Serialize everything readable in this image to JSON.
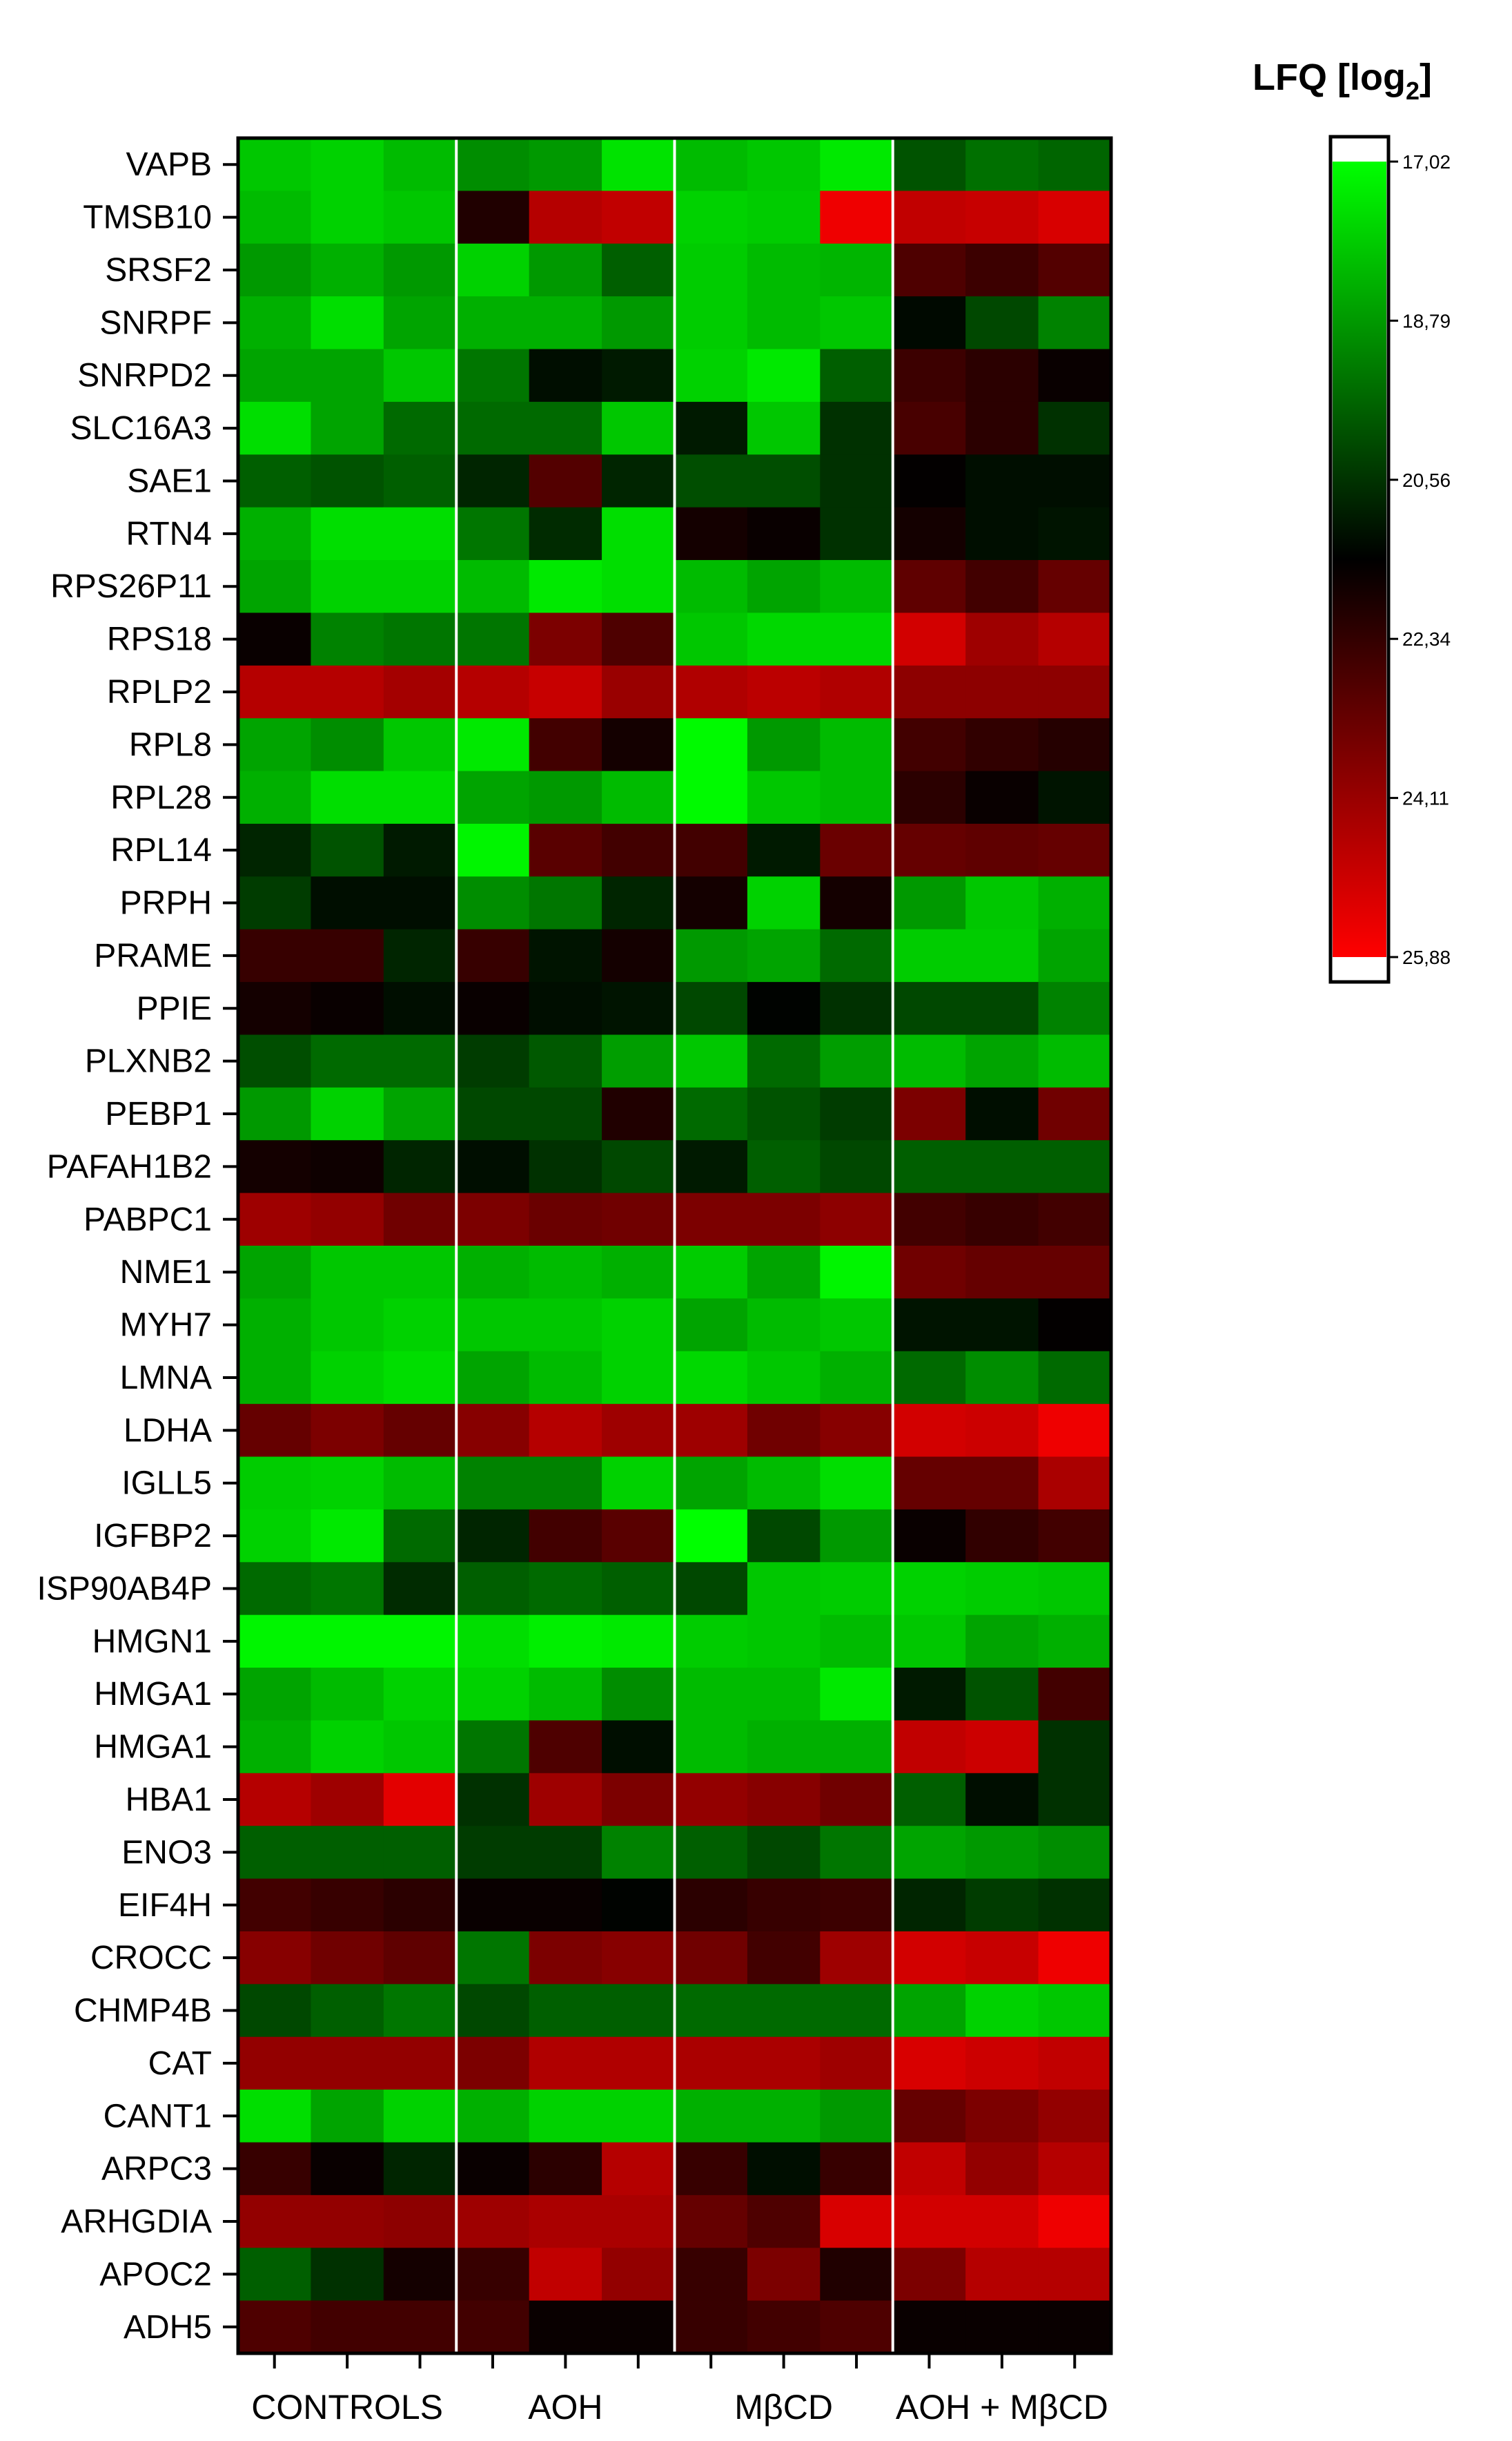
{
  "chart_data": {
    "type": "heatmap",
    "title": "",
    "xlabel": "",
    "ylabel": "",
    "groups": [
      "CONTROLS",
      "AOH",
      "MβCD",
      "AOH + MβCD"
    ],
    "replicates_per_group": 3,
    "rows": [
      "VAPB",
      "TMSB10",
      "SRSF2",
      "SNRPF",
      "SNRPD2",
      "SLC16A3",
      "SAE1",
      "RTN4",
      "RPS26P11",
      "RPS18",
      "RPLP2",
      "RPL8",
      "RPL28",
      "RPL14",
      "PRPH",
      "PRAME",
      "PPIE",
      "PLXNB2",
      "PEBP1",
      "PAFAH1B2",
      "PABPC1",
      "NME1",
      "MYH7",
      "LMNA",
      "LDHA",
      "IGLL5",
      "IGFBP2",
      "ISP90AB4P",
      "HMGN1",
      "HMGA1",
      "HMGA1",
      "HBA1",
      "ENO3",
      "EIF4H",
      "CROCC",
      "CHMP4B",
      "CAT",
      "CANT1",
      "ARPC3",
      "ARHGDIA",
      "APOC2",
      "ADH5"
    ],
    "values": [
      [
        18.0,
        17.8,
        18.2,
        19.0,
        18.8,
        17.5,
        18.2,
        18.0,
        17.4,
        20.0,
        19.5,
        19.7
      ],
      [
        18.2,
        17.8,
        18.0,
        22.0,
        24.6,
        24.8,
        17.8,
        17.9,
        25.6,
        24.8,
        24.9,
        25.2
      ],
      [
        18.8,
        18.4,
        18.8,
        17.8,
        18.8,
        19.8,
        17.9,
        18.2,
        18.3,
        22.8,
        22.5,
        22.9
      ],
      [
        18.4,
        17.6,
        18.6,
        18.4,
        18.4,
        18.8,
        17.9,
        18.2,
        18.0,
        21.3,
        20.2,
        19.2
      ],
      [
        18.6,
        18.6,
        18.0,
        19.4,
        21.2,
        21.0,
        17.8,
        17.4,
        19.8,
        22.5,
        22.2,
        21.6
      ],
      [
        17.6,
        18.6,
        19.6,
        19.6,
        19.6,
        18.0,
        21.0,
        18.0,
        20.6,
        22.7,
        22.2,
        20.6
      ],
      [
        19.8,
        20.0,
        19.8,
        20.8,
        22.9,
        20.8,
        20.1,
        20.1,
        20.6,
        21.5,
        21.2,
        21.2
      ],
      [
        18.4,
        17.6,
        17.6,
        19.4,
        20.7,
        17.6,
        21.8,
        21.6,
        20.6,
        21.8,
        21.2,
        21.1
      ],
      [
        18.6,
        17.8,
        17.8,
        18.2,
        17.4,
        17.6,
        18.2,
        18.6,
        18.2,
        23.1,
        22.6,
        23.2
      ],
      [
        21.6,
        19.2,
        19.4,
        19.4,
        23.6,
        22.8,
        18.0,
        17.7,
        17.7,
        25.1,
        24.2,
        24.6
      ],
      [
        24.6,
        24.6,
        24.3,
        24.6,
        24.9,
        24.1,
        24.5,
        24.7,
        24.5,
        23.9,
        23.9,
        23.9
      ],
      [
        18.6,
        19.0,
        18.0,
        17.4,
        22.6,
        21.8,
        17.1,
        18.8,
        18.2,
        22.6,
        22.3,
        22.1
      ],
      [
        18.4,
        17.6,
        17.6,
        18.6,
        18.8,
        18.2,
        17.1,
        18.0,
        18.2,
        22.2,
        21.6,
        21.1
      ],
      [
        20.8,
        20.0,
        21.0,
        17.2,
        23.0,
        22.6,
        22.6,
        21.0,
        23.3,
        23.2,
        23.1,
        23.2
      ],
      [
        20.4,
        21.2,
        21.2,
        19.0,
        19.4,
        20.8,
        21.8,
        17.8,
        21.8,
        18.8,
        18.0,
        18.4
      ],
      [
        22.4,
        22.4,
        20.8,
        22.4,
        21.1,
        21.8,
        18.8,
        18.6,
        19.6,
        17.9,
        17.9,
        18.6
      ],
      [
        21.8,
        21.6,
        21.2,
        21.6,
        21.2,
        21.1,
        20.2,
        21.4,
        20.6,
        20.2,
        20.2,
        19.2
      ],
      [
        20.1,
        19.6,
        19.6,
        20.4,
        19.9,
        18.7,
        18.0,
        19.6,
        18.7,
        18.2,
        18.6,
        18.2
      ],
      [
        18.8,
        17.8,
        18.6,
        20.2,
        20.2,
        22.0,
        19.6,
        20.0,
        20.4,
        23.6,
        21.2,
        23.4
      ],
      [
        21.8,
        21.7,
        20.8,
        21.2,
        20.6,
        20.2,
        21.0,
        19.8,
        20.2,
        19.8,
        19.8,
        19.8
      ],
      [
        24.2,
        24.0,
        23.4,
        23.6,
        23.3,
        23.4,
        23.6,
        23.6,
        23.9,
        22.6,
        22.4,
        22.6
      ],
      [
        18.6,
        18.0,
        18.0,
        18.4,
        18.2,
        18.4,
        17.9,
        18.6,
        17.2,
        23.4,
        23.2,
        23.2
      ],
      [
        18.4,
        18.0,
        17.8,
        18.0,
        18.0,
        17.8,
        18.6,
        18.2,
        18.0,
        21.1,
        21.1,
        21.5
      ],
      [
        18.4,
        17.8,
        17.6,
        18.6,
        18.2,
        17.8,
        17.7,
        18.0,
        18.4,
        19.6,
        19.0,
        19.6
      ],
      [
        23.2,
        23.6,
        23.2,
        23.8,
        24.6,
        24.2,
        24.2,
        23.4,
        23.8,
        25.1,
        25.0,
        25.6
      ],
      [
        17.9,
        17.8,
        18.2,
        19.2,
        19.2,
        17.8,
        18.6,
        18.2,
        17.6,
        23.2,
        23.2,
        24.4
      ],
      [
        17.8,
        17.4,
        19.6,
        20.8,
        22.6,
        23.0,
        17.0,
        20.2,
        18.8,
        21.6,
        22.3,
        22.6
      ],
      [
        19.6,
        19.4,
        20.7,
        19.8,
        19.6,
        19.8,
        20.2,
        18.0,
        17.9,
        17.8,
        17.9,
        18.0
      ],
      [
        17.2,
        17.2,
        17.2,
        17.6,
        17.3,
        17.4,
        17.9,
        18.0,
        18.2,
        18.0,
        18.6,
        18.4
      ],
      [
        18.6,
        18.2,
        17.8,
        17.8,
        18.2,
        19.0,
        18.2,
        18.2,
        17.4,
        21.0,
        20.0,
        22.6
      ],
      [
        18.4,
        17.8,
        18.0,
        19.4,
        22.8,
        21.2,
        18.2,
        18.4,
        18.4,
        24.8,
        25.0,
        20.6
      ],
      [
        24.6,
        24.2,
        25.4,
        20.6,
        24.2,
        23.6,
        24.0,
        23.8,
        23.4,
        19.8,
        21.2,
        20.6
      ],
      [
        19.8,
        19.8,
        19.8,
        20.4,
        20.4,
        19.2,
        19.8,
        20.2,
        19.4,
        18.6,
        18.8,
        19.0
      ],
      [
        22.6,
        22.4,
        22.2,
        21.6,
        21.6,
        21.4,
        22.2,
        22.4,
        22.5,
        20.8,
        20.4,
        20.6
      ],
      [
        23.8,
        23.4,
        23.1,
        19.4,
        23.6,
        23.8,
        23.4,
        22.6,
        24.2,
        25.1,
        24.9,
        25.6
      ],
      [
        20.2,
        19.8,
        19.4,
        20.2,
        19.8,
        19.8,
        19.6,
        19.6,
        19.6,
        18.6,
        17.8,
        18.0
      ],
      [
        24.0,
        24.0,
        24.0,
        23.6,
        24.5,
        24.5,
        24.4,
        24.4,
        24.2,
        25.2,
        25.0,
        24.8
      ],
      [
        17.6,
        18.6,
        17.8,
        18.4,
        17.8,
        17.8,
        18.4,
        18.4,
        18.8,
        23.2,
        23.6,
        24.0
      ],
      [
        22.4,
        21.6,
        20.8,
        21.6,
        22.2,
        24.6,
        22.4,
        21.2,
        22.4,
        24.8,
        24.0,
        24.6
      ],
      [
        24.0,
        24.0,
        23.9,
        24.2,
        24.4,
        24.4,
        23.2,
        22.8,
        25.2,
        25.1,
        25.1,
        25.6
      ],
      [
        19.8,
        20.6,
        21.8,
        22.4,
        24.8,
        24.0,
        22.4,
        23.6,
        22.0,
        23.6,
        24.6,
        24.6
      ],
      [
        22.8,
        22.6,
        22.6,
        22.6,
        21.6,
        21.6,
        22.4,
        22.6,
        22.8,
        21.6,
        21.6,
        21.6
      ]
    ],
    "colorbar": {
      "title": "LFQ [log",
      "title_sub": "2",
      "title_end": "]",
      "min": 17.02,
      "max": 25.88,
      "ticks": [
        "17,02",
        "18,79",
        "20,56",
        "22,34",
        "24,11",
        "25,88"
      ]
    },
    "colors": {
      "high_abundance": "#00ff00",
      "mid": "#000000",
      "low_abundance": "#ff0000",
      "separator": "#ffffff",
      "frame": "#000000"
    }
  }
}
